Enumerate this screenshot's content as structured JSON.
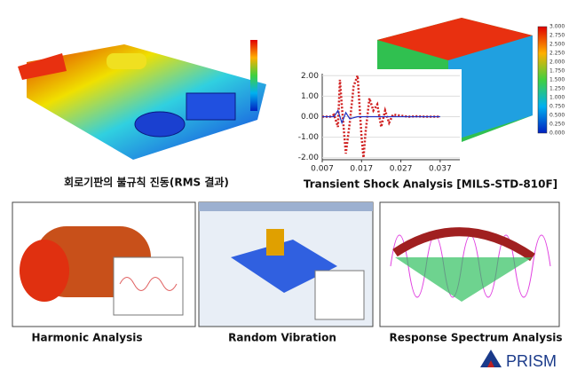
{
  "top_left": {
    "caption": "회로기판의 불규칙 진동(RMS 결과)"
  },
  "top_right": {
    "caption": "Transient Shock Analysis [MILS-STD-810F]",
    "colorbar": [
      "3.000",
      "2.750",
      "2.500",
      "2.250",
      "2.000",
      "1.750",
      "1.500",
      "1.250",
      "1.000",
      "0.750",
      "0.500",
      "0.250",
      "0.000"
    ]
  },
  "chart_data": {
    "type": "line",
    "xlim": [
      0.007,
      0.042
    ],
    "ylim": [
      -2.1,
      2.1
    ],
    "xticks": [
      0.007,
      0.017,
      0.027,
      0.037
    ],
    "yticks": [
      {
        "value": 2,
        "label": "2.00"
      },
      {
        "value": 1,
        "label": "1.00"
      },
      {
        "value": 0,
        "label": "0.00"
      },
      {
        "value": -1,
        "label": "-1.00"
      },
      {
        "value": -2,
        "label": "-2.00"
      }
    ],
    "series": [
      {
        "color": "#d02020",
        "x": [
          0.007,
          0.009,
          0.01,
          0.011,
          0.0115,
          0.012,
          0.013,
          0.014,
          0.015,
          0.016,
          0.017,
          0.0175,
          0.018,
          0.019,
          0.02,
          0.021,
          0.022,
          0.023,
          0.024,
          0.025,
          0.027,
          0.029,
          0.031,
          0.033,
          0.035,
          0.037
        ],
        "values": [
          0,
          0,
          0.1,
          -0.5,
          1.8,
          0.5,
          -1.8,
          -0.3,
          1.5,
          2.0,
          -1.0,
          -2.0,
          -0.8,
          0.9,
          0.3,
          0.6,
          -0.5,
          0.3,
          -0.3,
          0.1,
          0.05,
          0,
          0.02,
          0,
          0,
          0
        ]
      },
      {
        "color": "#2030c0",
        "x": [
          0.007,
          0.01,
          0.011,
          0.012,
          0.013,
          0.014,
          0.016,
          0.037
        ],
        "values": [
          0,
          0,
          0.3,
          -0.3,
          0.2,
          -0.1,
          0,
          0
        ]
      }
    ]
  },
  "bottom": [
    {
      "caption": "Harmonic Analysis"
    },
    {
      "caption": "Random Vibration"
    },
    {
      "caption": "Response Spectrum Analysis"
    }
  ],
  "logo": {
    "text": "PRISM"
  }
}
